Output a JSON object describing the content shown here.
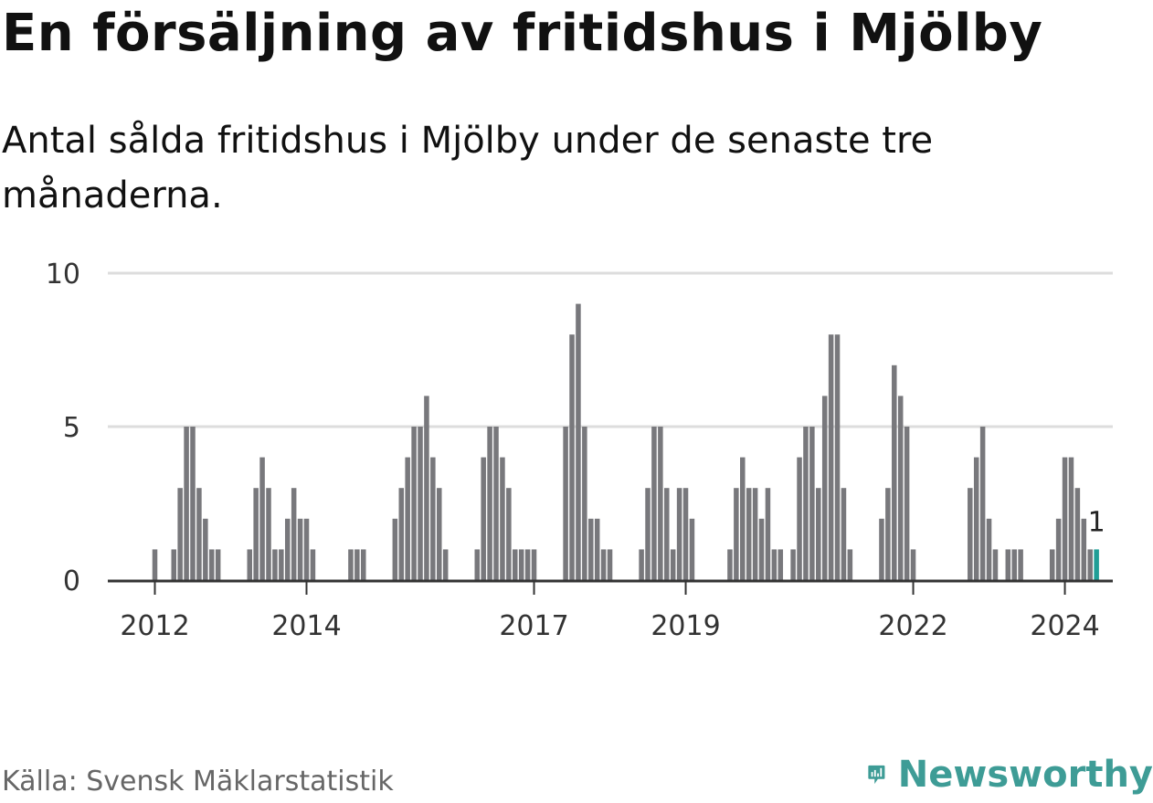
{
  "title": "En försäljning av fritidshus i Mjölby",
  "subtitle": "Antal sålda fritidshus i Mjölby under de senaste tre månaderna.",
  "source": "Källa: Svensk Mäklarstatistik",
  "brand": "Newsworthy",
  "colors": {
    "bar": "#78787c",
    "highlight": "#1f9e96",
    "grid": "#dddddd",
    "axis": "#333333",
    "brand": "#3e9c96"
  },
  "chart_data": {
    "type": "bar",
    "ylim": [
      0,
      10
    ],
    "yticks": [
      0,
      5,
      10
    ],
    "xticks": [
      {
        "label": "2012",
        "index": 0
      },
      {
        "label": "2014",
        "index": 24
      },
      {
        "label": "2017",
        "index": 60
      },
      {
        "label": "2019",
        "index": 84
      },
      {
        "label": "2022",
        "index": 120
      },
      {
        "label": "2024",
        "index": 144
      }
    ],
    "x_start_index": -7,
    "values": [
      0,
      0,
      0,
      0,
      0,
      0,
      0,
      1,
      0,
      0,
      1,
      3,
      5,
      5,
      3,
      2,
      1,
      1,
      0,
      0,
      0,
      0,
      1,
      3,
      4,
      3,
      1,
      1,
      2,
      3,
      2,
      2,
      1,
      0,
      0,
      0,
      0,
      0,
      1,
      1,
      1,
      0,
      0,
      0,
      0,
      2,
      3,
      4,
      5,
      5,
      6,
      4,
      3,
      1,
      0,
      0,
      0,
      0,
      1,
      4,
      5,
      5,
      4,
      3,
      1,
      1,
      1,
      1,
      0,
      0,
      0,
      0,
      5,
      8,
      9,
      5,
      2,
      2,
      1,
      1,
      0,
      0,
      0,
      0,
      1,
      3,
      5,
      5,
      3,
      1,
      3,
      3,
      2,
      0,
      0,
      0,
      0,
      0,
      1,
      3,
      4,
      3,
      3,
      2,
      3,
      1,
      1,
      0,
      1,
      4,
      5,
      5,
      3,
      6,
      8,
      8,
      3,
      1,
      0,
      0,
      0,
      0,
      2,
      3,
      7,
      6,
      5,
      1,
      0,
      0,
      0,
      0,
      0,
      0,
      0,
      0,
      3,
      4,
      5,
      2,
      1,
      0,
      1,
      1,
      1,
      0,
      0,
      0,
      0,
      1,
      2,
      4,
      4,
      3,
      2,
      1,
      1
    ],
    "highlight_label": "1"
  }
}
